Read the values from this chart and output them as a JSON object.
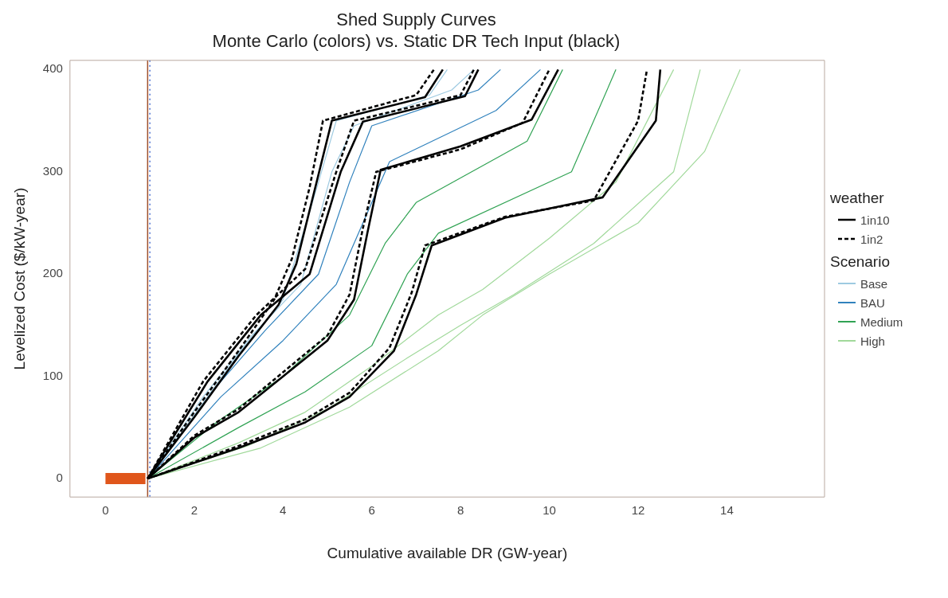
{
  "chart_data": {
    "type": "line",
    "title": "Shed Supply Curves",
    "subtitle": "Monte Carlo (colors) vs. Static DR Tech Input (black)",
    "xlabel": "Cumulative available DR (GW-year)",
    "ylabel": "Levelized Cost ($/kW-year)",
    "xlim": [
      -0.8,
      16.2
    ],
    "ylim": [
      -18,
      409
    ],
    "xticks": [
      0,
      2,
      4,
      6,
      8,
      10,
      12,
      14
    ],
    "yticks": [
      0,
      100,
      200,
      300,
      400
    ],
    "grid": false,
    "legend": "right",
    "legend_title": "weather",
    "annotations": [
      "Scenario"
    ],
    "marker": "none",
    "ref_lines": [
      {
        "axis": "x",
        "value": 0.95,
        "color": "#a0522d",
        "line_style": "solid"
      },
      {
        "axis": "x",
        "value": 1.0,
        "color": "#4a6fd0",
        "line_style": "dotted"
      }
    ],
    "series": [
      {
        "name": "1in10",
        "color": "#000000",
        "line_style": "solid",
        "x": [
          0.95,
          2,
          3,
          3.9,
          4.3,
          4.7,
          5.1,
          7.2,
          7.6
        ],
        "values": [
          0,
          60,
          120,
          170,
          210,
          280,
          350,
          373,
          400
        ]
      },
      {
        "name": "1in2",
        "color": "#000000",
        "line_style": "dashed",
        "x": [
          0.95,
          2,
          3,
          3.8,
          4.2,
          4.6,
          4.9,
          7.0,
          7.4
        ],
        "values": [
          0,
          65,
          125,
          175,
          215,
          285,
          350,
          375,
          400
        ]
      },
      {
        "color": "#000000",
        "line_style": "solid",
        "x": [
          0.95,
          2.3,
          3.5,
          4.6,
          5.3,
          5.8,
          8.1,
          8.4
        ],
        "values": [
          0,
          95,
          160,
          200,
          300,
          349,
          374,
          400
        ]
      },
      {
        "color": "#000000",
        "line_style": "dashed",
        "x": [
          0.95,
          2.2,
          3.4,
          4.5,
          5.2,
          5.6,
          8.0,
          8.3
        ],
        "values": [
          0,
          95,
          160,
          205,
          300,
          350,
          375,
          400
        ]
      },
      {
        "color": "#000000",
        "line_style": "solid",
        "x": [
          0.95,
          2,
          3,
          4,
          5,
          5.6,
          5.9,
          6.2,
          8,
          9.6,
          10.2
        ],
        "values": [
          0,
          40,
          65,
          100,
          135,
          175,
          240,
          302,
          325,
          351,
          400
        ]
      },
      {
        "color": "#000000",
        "line_style": "dashed",
        "x": [
          0.95,
          2,
          3,
          4,
          5,
          5.5,
          5.8,
          6.1,
          8,
          9.4,
          10
        ],
        "values": [
          0,
          42,
          68,
          104,
          140,
          180,
          245,
          300,
          322,
          348,
          400
        ]
      },
      {
        "color": "#000000",
        "line_style": "solid",
        "x": [
          0.95,
          3,
          4.5,
          5.5,
          6.5,
          7,
          7.35,
          9,
          11.2,
          12.4,
          12.5
        ],
        "values": [
          0,
          30,
          55,
          80,
          125,
          180,
          228,
          255,
          275,
          350,
          400
        ]
      },
      {
        "color": "#000000",
        "line_style": "dashed",
        "x": [
          0.95,
          3,
          4.5,
          5.5,
          6.4,
          6.9,
          7.2,
          9,
          11,
          12,
          12.2
        ],
        "values": [
          0,
          32,
          58,
          84,
          128,
          182,
          228,
          256,
          272,
          350,
          400
        ]
      },
      {
        "name": "Base",
        "color": "#9ecae1",
        "x": [
          0.95,
          2,
          3,
          4,
          4.8,
          5.2,
          7.3,
          7.7
        ],
        "values": [
          0,
          62,
          122,
          175,
          290,
          350,
          375,
          400
        ]
      },
      {
        "color": "#9ecae1",
        "x": [
          0.95,
          2.2,
          3.3,
          4.4,
          5.1,
          5.6,
          7.8,
          8.3
        ],
        "values": [
          0,
          80,
          140,
          190,
          300,
          345,
          380,
          400
        ]
      },
      {
        "name": "BAU",
        "color": "#3182bd",
        "x": [
          0.95,
          2.4,
          3.6,
          4.8,
          5.5,
          6,
          8.4,
          8.9
        ],
        "values": [
          0,
          85,
          145,
          200,
          290,
          345,
          380,
          400
        ]
      },
      {
        "color": "#3182bd",
        "x": [
          0.95,
          2.6,
          4,
          5.2,
          5.9,
          6.4,
          8.8,
          9.8
        ],
        "values": [
          0,
          80,
          135,
          190,
          260,
          310,
          360,
          400
        ]
      },
      {
        "name": "Medium",
        "color": "#31a354",
        "x": [
          0.95,
          2.5,
          4,
          5.5,
          6.3,
          7,
          9.5,
          10.3
        ],
        "values": [
          0,
          55,
          100,
          160,
          230,
          270,
          330,
          400
        ]
      },
      {
        "color": "#31a354",
        "x": [
          0.95,
          3,
          4.5,
          6,
          6.8,
          7.5,
          10.5,
          11.5
        ],
        "values": [
          0,
          50,
          85,
          130,
          200,
          240,
          300,
          400
        ]
      },
      {
        "name": "High",
        "color": "#a1d99b",
        "x": [
          0.95,
          3,
          4.5,
          6,
          7.5,
          8.5,
          10,
          11.5,
          12.8
        ],
        "values": [
          0,
          35,
          65,
          110,
          160,
          185,
          235,
          290,
          400
        ]
      },
      {
        "color": "#a1d99b",
        "x": [
          0.95,
          3.2,
          5,
          6.8,
          8,
          9.2,
          11,
          12.8,
          13.4
        ],
        "values": [
          0,
          32,
          68,
          118,
          150,
          180,
          230,
          300,
          400
        ]
      },
      {
        "color": "#a1d99b",
        "x": [
          0.95,
          3.5,
          5.5,
          7.5,
          8.5,
          10,
          12,
          13.5,
          14.3
        ],
        "values": [
          0,
          30,
          70,
          125,
          160,
          200,
          250,
          320,
          400
        ]
      },
      {
        "color": "#e0561b",
        "x": [
          0,
          0.9
        ],
        "values": [
          0,
          0
        ]
      }
    ]
  }
}
